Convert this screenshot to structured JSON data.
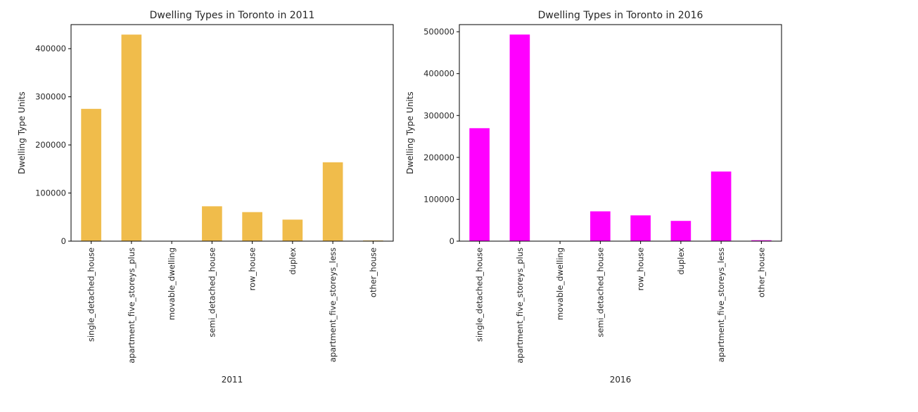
{
  "chart_data": [
    {
      "type": "bar",
      "title": "Dwelling Types in Toronto in 2011",
      "xlabel": "2011",
      "ylabel": "Dwelling Type Units",
      "categories": [
        "single_detached_house",
        "apartment_five_storeys_plus",
        "movable_dwelling",
        "semi_detached_house",
        "row_house",
        "duplex",
        "apartment_five_storeys_less",
        "other_house"
      ],
      "values": [
        274940,
        429220,
        100,
        72480,
        60355,
        44750,
        163895,
        1400
      ],
      "ylim": [
        0,
        450000
      ],
      "yticks": [
        0,
        100000,
        200000,
        300000,
        400000
      ],
      "color": "#f0bc4b",
      "grid": false,
      "legend": "none"
    },
    {
      "type": "bar",
      "title": "Dwelling Types in Toronto in 2016",
      "xlabel": "2016",
      "ylabel": "Dwelling Type Units",
      "categories": [
        "single_detached_house",
        "apartment_five_storeys_plus",
        "movable_dwelling",
        "semi_detached_house",
        "row_house",
        "duplex",
        "apartment_five_storeys_less",
        "other_house"
      ],
      "values": [
        269680,
        493270,
        95,
        71200,
        61565,
        48345,
        166260,
        2165
      ],
      "ylim": [
        0,
        517000
      ],
      "yticks": [
        0,
        100000,
        200000,
        300000,
        400000,
        500000
      ],
      "color": "#ff00ff",
      "grid": false,
      "legend": "none"
    }
  ]
}
